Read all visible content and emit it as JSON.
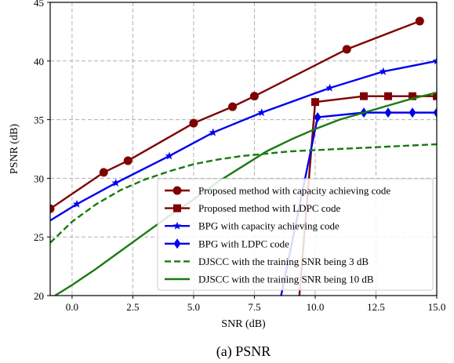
{
  "caption": "(a)  PSNR",
  "chart_data": {
    "type": "line",
    "xlabel": "SNR (dB)",
    "ylabel": "PSNR (dB)",
    "xlim": [
      -0.9,
      15.0
    ],
    "ylim": [
      20,
      45
    ],
    "xticks": [
      0.0,
      2.5,
      5.0,
      7.5,
      10.0,
      12.5,
      15.0
    ],
    "xtick_labels": [
      "0.0",
      "2.5",
      "5.0",
      "7.5",
      "10.0",
      "12.5",
      "15.0"
    ],
    "yticks": [
      20,
      25,
      30,
      35,
      40,
      45
    ],
    "ytick_labels": [
      "20",
      "25",
      "30",
      "35",
      "40",
      "45"
    ],
    "grid": true,
    "legend_position": "lower-right",
    "series": [
      {
        "name": "Proposed method with capacity achieving code",
        "color": "#7f0000",
        "dash": "solid",
        "marker": "circle",
        "x": [
          -0.9,
          1.3,
          2.3,
          5.0,
          6.6,
          7.5,
          11.3,
          14.3
        ],
        "y": [
          27.4,
          30.5,
          31.5,
          34.7,
          36.1,
          37.0,
          41.0,
          43.4
        ],
        "markers_at": [
          -0.9,
          1.3,
          2.3,
          5.0,
          6.6,
          7.5,
          11.3,
          14.3
        ]
      },
      {
        "name": "Proposed method with LDPC code",
        "color": "#7f0000",
        "dash": "solid",
        "marker": "square",
        "x": [
          9.35,
          10.0,
          12.0,
          13.0,
          14.0,
          15.0
        ],
        "y": [
          20.0,
          36.5,
          37.0,
          37.0,
          37.0,
          37.0
        ],
        "markers_at": [
          10.0,
          12.0,
          13.0,
          14.0,
          15.0
        ]
      },
      {
        "name": "BPG with capacity achieving code",
        "color": "#0000ee",
        "dash": "solid",
        "marker": "star",
        "x": [
          -0.9,
          0.2,
          1.8,
          4.0,
          5.8,
          7.8,
          10.6,
          12.8,
          15.0
        ],
        "y": [
          26.4,
          27.8,
          29.6,
          31.9,
          33.9,
          35.6,
          37.7,
          39.1,
          40.0
        ],
        "markers_at": [
          0.2,
          1.8,
          4.0,
          5.8,
          7.8,
          10.6,
          12.8,
          15.0
        ]
      },
      {
        "name": "BPG with LDPC code",
        "color": "#0000ee",
        "dash": "solid",
        "marker": "diamond",
        "x": [
          8.6,
          10.1,
          12.0,
          13.0,
          14.0,
          15.0
        ],
        "y": [
          20.0,
          35.2,
          35.6,
          35.6,
          35.6,
          35.6
        ],
        "markers_at": [
          10.1,
          12.0,
          13.0,
          14.0,
          15.0
        ]
      },
      {
        "name": "DJSCC with the training SNR being 3 dB",
        "color": "#1a7a10",
        "dash": "dashed",
        "marker": "none",
        "x": [
          -0.9,
          0.0,
          1.0,
          2.0,
          3.0,
          4.0,
          5.0,
          6.0,
          7.0,
          8.0,
          9.0,
          10.0,
          11.0,
          12.0,
          13.0,
          14.0,
          15.0
        ],
        "y": [
          24.5,
          26.3,
          27.8,
          29.0,
          29.9,
          30.6,
          31.2,
          31.6,
          31.9,
          32.1,
          32.3,
          32.4,
          32.5,
          32.6,
          32.7,
          32.8,
          32.9
        ]
      },
      {
        "name": "DJSCC with the training SNR being 10 dB",
        "color": "#1a7a10",
        "dash": "solid",
        "marker": "none",
        "x": [
          -0.7,
          0.0,
          1.0,
          2.0,
          3.0,
          4.0,
          5.0,
          6.0,
          7.0,
          8.0,
          9.0,
          10.0,
          11.0,
          12.0,
          13.0,
          14.0,
          15.0
        ],
        "y": [
          20.0,
          20.9,
          22.3,
          23.8,
          25.3,
          26.8,
          28.2,
          29.7,
          31.0,
          32.3,
          33.3,
          34.2,
          35.0,
          35.6,
          36.2,
          36.8,
          37.3
        ]
      }
    ]
  }
}
